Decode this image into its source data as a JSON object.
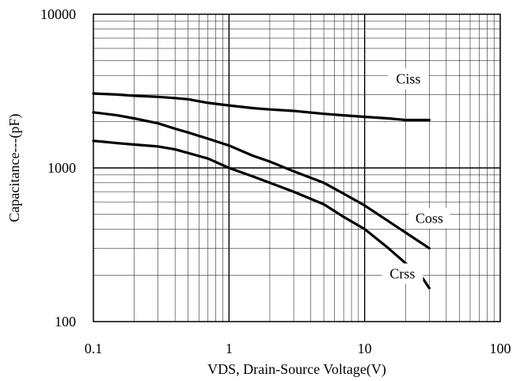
{
  "chart_data": {
    "type": "line",
    "xscale": "log",
    "yscale": "log",
    "xlim": [
      0.1,
      100
    ],
    "ylim": [
      100,
      10000
    ],
    "grid": true,
    "xlabel": "VDS, Drain-Source Voltage(V)",
    "ylabel": "Capacitance---(pF)",
    "x_ticks": [
      "0.1",
      "1",
      "10",
      "100"
    ],
    "y_ticks": [
      "100",
      "1000",
      "10000"
    ],
    "line_color": "#000000",
    "series": [
      {
        "name": "Ciss",
        "x": [
          0.1,
          0.15,
          0.2,
          0.3,
          0.4,
          0.5,
          0.7,
          1,
          1.5,
          2,
          3,
          5,
          7,
          10,
          15,
          20,
          30
        ],
        "y": [
          3050,
          3000,
          2950,
          2900,
          2850,
          2800,
          2650,
          2550,
          2450,
          2400,
          2350,
          2250,
          2200,
          2150,
          2100,
          2050,
          2050
        ]
      },
      {
        "name": "Coss",
        "x": [
          0.1,
          0.15,
          0.2,
          0.3,
          0.4,
          0.5,
          0.7,
          1,
          1.5,
          2,
          3,
          5,
          7,
          10,
          15,
          20,
          30
        ],
        "y": [
          2300,
          2200,
          2100,
          1950,
          1800,
          1700,
          1550,
          1400,
          1200,
          1100,
          950,
          800,
          680,
          570,
          450,
          380,
          300
        ]
      },
      {
        "name": "Crss",
        "x": [
          0.1,
          0.15,
          0.2,
          0.3,
          0.4,
          0.5,
          0.7,
          1,
          1.5,
          2,
          3,
          5,
          7,
          10,
          15,
          20,
          25,
          30
        ],
        "y": [
          1500,
          1450,
          1420,
          1380,
          1320,
          1250,
          1150,
          1000,
          880,
          800,
          700,
          580,
          480,
          400,
          300,
          240,
          210,
          165
        ]
      }
    ]
  }
}
